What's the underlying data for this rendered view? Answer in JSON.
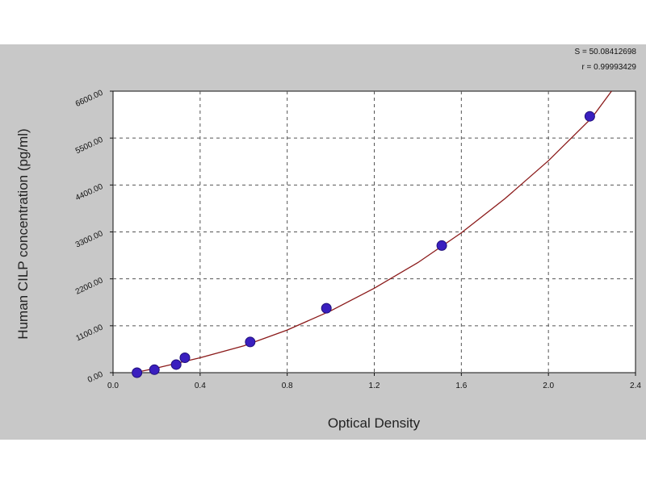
{
  "chart_data": {
    "type": "scatter",
    "title": "",
    "xlabel": "Optical Density",
    "ylabel": "Human CILP concentration (pg/ml)",
    "xlim": [
      0.0,
      2.4
    ],
    "ylim": [
      0,
      6600
    ],
    "x_ticks": [
      "0.0",
      "0.4",
      "0.8",
      "1.2",
      "1.6",
      "2.0",
      "2.4"
    ],
    "y_ticks": [
      "0.00",
      "1100.00",
      "2200.00",
      "3300.00",
      "4400.00",
      "5500.00",
      "6600.00"
    ],
    "grid": true,
    "stats": [
      "S = 50.08412698",
      "r = 0.99993429"
    ],
    "series": [
      {
        "points": [
          {
            "x": 0.11,
            "y": 0
          },
          {
            "x": 0.19,
            "y": 70
          },
          {
            "x": 0.29,
            "y": 190
          },
          {
            "x": 0.33,
            "y": 350
          },
          {
            "x": 0.63,
            "y": 720
          },
          {
            "x": 0.98,
            "y": 1510
          },
          {
            "x": 1.51,
            "y": 2980
          },
          {
            "x": 2.19,
            "y": 6010
          }
        ],
        "color": "#3a1fbf"
      },
      {
        "type": "line",
        "curve": [
          {
            "x": 0.1,
            "y": 0
          },
          {
            "x": 0.2,
            "y": 110
          },
          {
            "x": 0.4,
            "y": 350
          },
          {
            "x": 0.6,
            "y": 630
          },
          {
            "x": 0.8,
            "y": 1000
          },
          {
            "x": 1.0,
            "y": 1450
          },
          {
            "x": 1.2,
            "y": 1980
          },
          {
            "x": 1.4,
            "y": 2580
          },
          {
            "x": 1.6,
            "y": 3280
          },
          {
            "x": 1.8,
            "y": 4080
          },
          {
            "x": 2.0,
            "y": 4970
          },
          {
            "x": 2.2,
            "y": 5980
          },
          {
            "x": 2.29,
            "y": 6600
          }
        ],
        "color": "#8b1a1a"
      }
    ]
  }
}
